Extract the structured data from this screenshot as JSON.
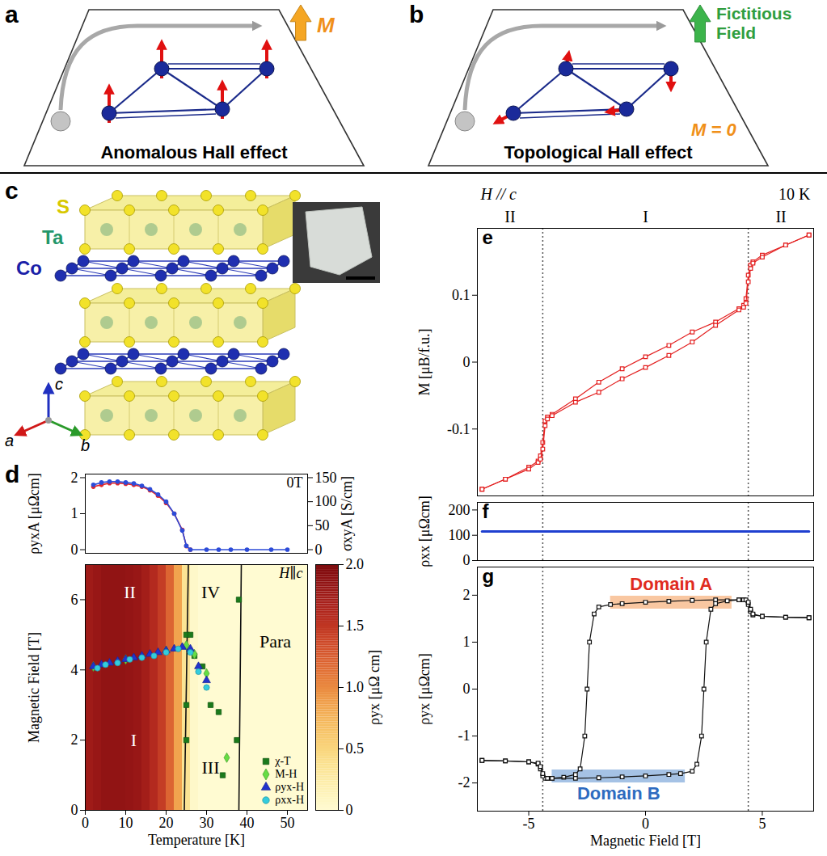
{
  "diagrams": {
    "a": {
      "panel": "a",
      "label": "M",
      "caption": "Anomalous Hall effect"
    },
    "b": {
      "panel": "b",
      "label": "Fictitious Field",
      "annotation": "M = 0",
      "caption": "Topological Hall effect"
    },
    "c": {
      "panel": "c",
      "atoms": [
        "S",
        "Ta",
        "Co"
      ],
      "axes": [
        "a",
        "b",
        "c"
      ]
    }
  },
  "chart_data": [
    {
      "panel": "d",
      "type": "line",
      "annotation": "0T",
      "xlim": [
        0,
        55
      ],
      "xticks": [
        0,
        10,
        20,
        30,
        40,
        50
      ],
      "ylim": [
        -0.1,
        2.1
      ],
      "yticks": [
        0,
        1,
        2
      ],
      "y_label": "ρyxA [μΩcm]",
      "y2lim": [
        -7.5,
        157.5
      ],
      "y2ticks": [
        0,
        50,
        100,
        150
      ],
      "y2_label": "σxyA [S/cm]",
      "tick_labels": "y",
      "series": [
        {
          "color": "#e3262b",
          "marker": "circle",
          "x": [
            2,
            4,
            6,
            8,
            10,
            12,
            14,
            16,
            18,
            20,
            22,
            24,
            25,
            26
          ],
          "values": [
            1.75,
            1.8,
            1.85,
            1.85,
            1.83,
            1.8,
            1.75,
            1.65,
            1.5,
            1.3,
            1.0,
            0.55,
            0.1,
            0
          ]
        },
        {
          "color": "#2c4bd8",
          "marker": "circle",
          "axis": "y2",
          "x": [
            2,
            4,
            6,
            8,
            10,
            12,
            14,
            16,
            18,
            20,
            22,
            24,
            25,
            26,
            30,
            33,
            36,
            40,
            46,
            50
          ],
          "values": [
            135,
            140,
            142,
            142,
            140,
            138,
            133,
            126,
            115,
            100,
            75,
            40,
            8,
            0,
            0,
            0,
            0,
            0,
            0,
            0
          ]
        }
      ]
    },
    {
      "type": "heatmap",
      "annotation": "H∥c",
      "x_label": "Temperature [K]",
      "y_label": "Magnetic Field [T]",
      "xlim": [
        0,
        55
      ],
      "xticks": [
        0,
        10,
        20,
        30,
        40,
        50
      ],
      "ylim": [
        0,
        7
      ],
      "yticks": [
        0,
        2,
        4,
        6
      ],
      "legend": "bottom-right",
      "heatmap": {
        "bins": [
          0,
          2,
          4,
          6,
          8,
          10,
          12,
          14,
          16,
          18,
          20,
          22,
          24,
          26,
          28,
          30,
          32,
          34,
          36,
          38,
          40,
          42,
          44,
          46,
          48,
          50,
          52,
          54,
          56
        ],
        "values": [
          1.75,
          1.8,
          1.85,
          1.85,
          1.85,
          1.83,
          1.8,
          1.72,
          1.6,
          1.45,
          1.2,
          0.85,
          0.35,
          0.05,
          0,
          0,
          0,
          0,
          0,
          0,
          0,
          0,
          0,
          0,
          0,
          0,
          0,
          0
        ]
      },
      "colorbar": {
        "label": "ρyx [μΩ cm]",
        "range": [
          0,
          2
        ],
        "ticks": [
          0,
          0.5,
          {
            "value": 1,
            "label": "1.0"
          },
          1.5,
          {
            "value": 2,
            "label": "2.0"
          }
        ],
        "colors": [
          "#fffbd2",
          "#fbe48a",
          "#f5b04f",
          "#e0632f",
          "#b5231f",
          "#7c0a0d"
        ]
      },
      "boundaries": [
        {
          "x": [
            24.5,
            25,
            25.5
          ],
          "values": [
            0,
            3.5,
            7
          ]
        },
        {
          "x": [
            38,
            38.3,
            38.6
          ],
          "values": [
            0,
            3.5,
            7
          ]
        }
      ],
      "regions": [
        {
          "label": "I",
          "x": 12,
          "y": 2
        },
        {
          "label": "II",
          "x": 11,
          "y": 6.2
        },
        {
          "label": "III",
          "x": 31,
          "y": 1.2
        },
        {
          "label": "IV",
          "x": 31,
          "y": 6.2
        },
        {
          "label": "Para",
          "x": 47,
          "y": 4.8
        }
      ],
      "series": [
        {
          "name": "χ-T",
          "color": "#1b7a1b",
          "marker": "square",
          "x": [
            25,
            25,
            25,
            26,
            27,
            29,
            31,
            33,
            34,
            37.5,
            38
          ],
          "values": [
            2.0,
            3.0,
            5.0,
            5.0,
            4.4,
            4.1,
            3.0,
            2.8,
            1.0,
            2.0,
            6.0
          ]
        },
        {
          "name": "M-H",
          "color": "#66dd44",
          "marker": "diamond",
          "x": [
            2,
            10,
            20,
            25,
            27,
            30,
            35
          ],
          "values": [
            4.1,
            4.3,
            4.55,
            4.7,
            4.45,
            3.9,
            1.5
          ]
        },
        {
          "name": "ρyx-H",
          "color": "#2233cc",
          "marker": "triangle",
          "x": [
            2,
            4,
            6,
            8,
            10,
            12,
            14,
            16,
            18,
            20,
            22,
            24,
            26,
            28,
            30
          ],
          "values": [
            4.1,
            4.15,
            4.2,
            4.25,
            4.3,
            4.35,
            4.4,
            4.45,
            4.5,
            4.55,
            4.6,
            4.65,
            4.6,
            4.1,
            3.7
          ]
        },
        {
          "name": "ρxx-H",
          "color": "#33ccdd",
          "marker": "circle",
          "x": [
            3,
            5,
            8,
            11,
            14,
            17,
            20,
            23,
            26,
            28,
            30
          ],
          "values": [
            4.05,
            4.15,
            4.2,
            4.3,
            4.35,
            4.4,
            4.5,
            4.6,
            4.5,
            3.95,
            3.5
          ]
        }
      ]
    },
    {
      "panel": "e",
      "type": "line",
      "y_label": "M [μB/f.u.]",
      "xlim": [
        -7.2,
        7.2
      ],
      "xticks": [
        -5,
        0,
        5
      ],
      "ylim": [
        -0.2,
        0.2
      ],
      "yticks": [
        -0.1,
        0,
        0.1
      ],
      "tick_labels": "y",
      "annotations": [
        "H // c",
        "10 K"
      ],
      "boundaries": [
        -4.4,
        4.4
      ],
      "regions": [
        "II",
        "I",
        "II"
      ],
      "series": [
        {
          "color": "#e32020",
          "marker": "square",
          "x": [
            7,
            6,
            5,
            4.6,
            4.5,
            4.4,
            4.3,
            4.2,
            4,
            3,
            2,
            1,
            0,
            -1,
            -2,
            -3,
            -4,
            -4.2,
            -4.3,
            -4.4,
            -4.5,
            -4.6,
            -5,
            -6,
            -7
          ],
          "values": [
            0.19,
            0.175,
            0.16,
            0.15,
            0.145,
            0.13,
            0.095,
            0.085,
            0.08,
            0.06,
            0.045,
            0.025,
            0.008,
            -0.01,
            -0.03,
            -0.055,
            -0.078,
            -0.082,
            -0.088,
            -0.12,
            -0.14,
            -0.148,
            -0.157,
            -0.175,
            -0.19
          ]
        },
        {
          "color": "#e32020",
          "marker": "square",
          "x": [
            -7,
            -6,
            -5,
            -4.6,
            -4.5,
            -4.4,
            -4.3,
            -4.2,
            -4,
            -3,
            -2,
            -1,
            0,
            1,
            2,
            3,
            4,
            4.2,
            4.3,
            4.4,
            4.5,
            4.6,
            5,
            6,
            7
          ],
          "values": [
            -0.19,
            -0.175,
            -0.16,
            -0.15,
            -0.145,
            -0.13,
            -0.095,
            -0.085,
            -0.08,
            -0.06,
            -0.045,
            -0.025,
            -0.008,
            0.01,
            0.03,
            0.055,
            0.078,
            0.082,
            0.088,
            0.12,
            0.14,
            0.148,
            0.157,
            0.175,
            0.19
          ]
        }
      ]
    },
    {
      "panel": "f",
      "type": "line",
      "y_label": "ρxx [μΩcm]",
      "xlim": [
        -7.2,
        7.2
      ],
      "xticks": [
        -5,
        0,
        5
      ],
      "ylim": [
        0,
        230
      ],
      "yticks": [
        0,
        100,
        200
      ],
      "tick_labels": "y",
      "boundaries": [
        -4.4,
        4.4
      ],
      "series": [
        {
          "color": "#1f3fd0",
          "x": [
            -7,
            -5,
            -3,
            -1,
            1,
            3,
            5,
            7
          ],
          "values": [
            115,
            115,
            115,
            115,
            115,
            115,
            115,
            115
          ]
        }
      ]
    },
    {
      "panel": "g",
      "type": "line",
      "x_label": "Magnetic Field [T]",
      "y_label": "ρyx [μΩcm]",
      "xlim": [
        -7.2,
        7.2
      ],
      "xticks": [
        -5,
        0,
        5
      ],
      "ylim": [
        -2.6,
        2.6
      ],
      "yticks": [
        -2,
        -1,
        0,
        1,
        2
      ],
      "boundaries": [
        -4.4,
        4.4
      ],
      "bands": [
        {
          "label": "Domain A",
          "x": [
            -1.5,
            3.7
          ],
          "y": 1.85,
          "colors": [
            "#f7b98a",
            "#e02b1e"
          ]
        },
        {
          "label": "Domain B",
          "x": [
            -4,
            1.7
          ],
          "y": -1.85,
          "colors": [
            "#8fb3de",
            "#2e6bc0"
          ]
        }
      ],
      "series": [
        {
          "color": "#111111",
          "marker": "square",
          "x": [
            7,
            6,
            5,
            4.6,
            4.5,
            4.4,
            4.2,
            4,
            3,
            2,
            1,
            0,
            -1,
            -1.5,
            -2,
            -2.2,
            -2.4,
            -2.5,
            -2.6,
            -2.8,
            -3,
            -3.5,
            -4,
            -4.2,
            -4.3,
            -4.4,
            -4.5,
            -4.6,
            -5,
            -6,
            -7
          ],
          "values": [
            1.52,
            1.53,
            1.55,
            1.58,
            1.65,
            1.8,
            1.9,
            1.9,
            1.9,
            1.89,
            1.87,
            1.85,
            1.82,
            1.8,
            1.75,
            1.6,
            1.0,
            0,
            -1.0,
            -1.7,
            -1.82,
            -1.88,
            -1.9,
            -1.9,
            -1.9,
            -1.85,
            -1.7,
            -1.6,
            -1.55,
            -1.53,
            -1.52
          ]
        },
        {
          "color": "#111111",
          "marker": "square",
          "x": [
            -7,
            -6,
            -5,
            -4.6,
            -4.5,
            -4.4,
            -4.2,
            -4,
            -3,
            -2,
            -1,
            0,
            1,
            1.5,
            2,
            2.2,
            2.4,
            2.5,
            2.6,
            2.8,
            3,
            3.5,
            4,
            4.2,
            4.3,
            4.4,
            4.5,
            4.6,
            5,
            6,
            7
          ],
          "values": [
            -1.52,
            -1.53,
            -1.55,
            -1.58,
            -1.65,
            -1.8,
            -1.9,
            -1.9,
            -1.9,
            -1.89,
            -1.87,
            -1.85,
            -1.82,
            -1.8,
            -1.75,
            -1.6,
            -1.0,
            0,
            1.0,
            1.7,
            1.82,
            1.88,
            1.9,
            1.9,
            1.9,
            1.85,
            1.7,
            1.6,
            1.55,
            1.53,
            1.52
          ]
        }
      ]
    }
  ]
}
